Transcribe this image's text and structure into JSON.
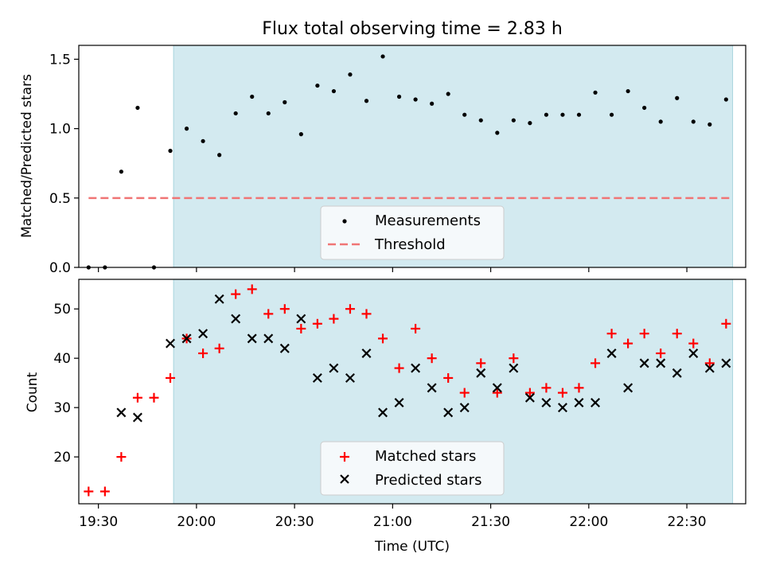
{
  "title": "Flux total observing time = 2.83 h",
  "colors": {
    "span": "#d3eaf0",
    "threshold": "#f07575",
    "matched": "#ff0000",
    "predicted": "#000000",
    "measurement": "#000000"
  },
  "chart_data": [
    {
      "type": "scatter",
      "ylabel": "Matched/Predicted stars",
      "ylim": [
        0,
        1.6
      ],
      "yticks": [
        "0.0",
        "0.5",
        "1.0",
        "1.5"
      ],
      "yticks_values": [
        0,
        0.5,
        1.0,
        1.5
      ],
      "xlim": [
        "19:24",
        "22:48"
      ],
      "shaded_span": [
        "19:53",
        "22:44"
      ],
      "legend": {
        "position": "bottom-center",
        "entries": [
          "Measurements",
          "Threshold"
        ]
      },
      "threshold": {
        "value": 0.5,
        "x_start": "19:27",
        "x_end": "22:43"
      },
      "series": [
        {
          "name": "Measurements",
          "points": [
            [
              "19:27",
              0.0
            ],
            [
              "19:32",
              0.0
            ],
            [
              "19:37",
              0.69
            ],
            [
              "19:42",
              1.15
            ],
            [
              "19:47",
              0.0
            ],
            [
              "19:52",
              0.84
            ],
            [
              "19:57",
              1.0
            ],
            [
              "20:02",
              0.91
            ],
            [
              "20:07",
              0.81
            ],
            [
              "20:12",
              1.11
            ],
            [
              "20:17",
              1.23
            ],
            [
              "20:22",
              1.11
            ],
            [
              "20:27",
              1.19
            ],
            [
              "20:32",
              0.96
            ],
            [
              "20:37",
              1.31
            ],
            [
              "20:42",
              1.27
            ],
            [
              "20:47",
              1.39
            ],
            [
              "20:52",
              1.2
            ],
            [
              "20:57",
              1.52
            ],
            [
              "21:02",
              1.23
            ],
            [
              "21:07",
              1.21
            ],
            [
              "21:12",
              1.18
            ],
            [
              "21:17",
              1.25
            ],
            [
              "21:22",
              1.1
            ],
            [
              "21:27",
              1.06
            ],
            [
              "21:32",
              0.97
            ],
            [
              "21:37",
              1.06
            ],
            [
              "21:42",
              1.04
            ],
            [
              "21:47",
              1.1
            ],
            [
              "21:52",
              1.1
            ],
            [
              "21:57",
              1.1
            ],
            [
              "22:02",
              1.26
            ],
            [
              "22:07",
              1.1
            ],
            [
              "22:12",
              1.27
            ],
            [
              "22:17",
              1.15
            ],
            [
              "22:22",
              1.05
            ],
            [
              "22:27",
              1.22
            ],
            [
              "22:32",
              1.05
            ],
            [
              "22:37",
              1.03
            ],
            [
              "22:42",
              1.21
            ]
          ]
        }
      ]
    },
    {
      "type": "scatter",
      "ylabel": "Count",
      "xlabel": "Time (UTC)",
      "ylim": [
        10.5,
        56
      ],
      "yticks": [
        "20",
        "30",
        "40",
        "50"
      ],
      "yticks_values": [
        20,
        30,
        40,
        50
      ],
      "xticks": [
        "19:30",
        "20:00",
        "20:30",
        "21:00",
        "21:30",
        "22:00",
        "22:30"
      ],
      "xlim": [
        "19:24",
        "22:48"
      ],
      "shaded_span": [
        "19:53",
        "22:44"
      ],
      "legend": {
        "position": "bottom-center",
        "entries": [
          "Matched stars",
          "Predicted stars"
        ]
      },
      "series": [
        {
          "name": "Matched stars",
          "marker": "+",
          "points": [
            [
              "19:27",
              13
            ],
            [
              "19:32",
              13
            ],
            [
              "19:37",
              20
            ],
            [
              "19:42",
              32
            ],
            [
              "19:47",
              32
            ],
            [
              "19:52",
              36
            ],
            [
              "19:57",
              44
            ],
            [
              "20:02",
              41
            ],
            [
              "20:07",
              42
            ],
            [
              "20:12",
              53
            ],
            [
              "20:17",
              54
            ],
            [
              "20:22",
              49
            ],
            [
              "20:27",
              50
            ],
            [
              "20:32",
              46
            ],
            [
              "20:37",
              47
            ],
            [
              "20:42",
              48
            ],
            [
              "20:47",
              50
            ],
            [
              "20:52",
              49
            ],
            [
              "20:57",
              44
            ],
            [
              "21:02",
              38
            ],
            [
              "21:07",
              46
            ],
            [
              "21:12",
              40
            ],
            [
              "21:17",
              36
            ],
            [
              "21:22",
              33
            ],
            [
              "21:27",
              39
            ],
            [
              "21:32",
              33
            ],
            [
              "21:37",
              40
            ],
            [
              "21:42",
              33
            ],
            [
              "21:47",
              34
            ],
            [
              "21:52",
              33
            ],
            [
              "21:57",
              34
            ],
            [
              "22:02",
              39
            ],
            [
              "22:07",
              45
            ],
            [
              "22:12",
              43
            ],
            [
              "22:17",
              45
            ],
            [
              "22:22",
              41
            ],
            [
              "22:27",
              45
            ],
            [
              "22:32",
              43
            ],
            [
              "22:37",
              39
            ],
            [
              "22:42",
              47
            ]
          ]
        },
        {
          "name": "Predicted stars",
          "marker": "x",
          "points": [
            [
              "19:37",
              29
            ],
            [
              "19:42",
              28
            ],
            [
              "19:52",
              43
            ],
            [
              "19:57",
              44
            ],
            [
              "20:02",
              45
            ],
            [
              "20:07",
              52
            ],
            [
              "20:12",
              48
            ],
            [
              "20:17",
              44
            ],
            [
              "20:22",
              44
            ],
            [
              "20:27",
              42
            ],
            [
              "20:32",
              48
            ],
            [
              "20:37",
              36
            ],
            [
              "20:42",
              38
            ],
            [
              "20:47",
              36
            ],
            [
              "20:52",
              41
            ],
            [
              "20:57",
              29
            ],
            [
              "21:02",
              31
            ],
            [
              "21:07",
              38
            ],
            [
              "21:12",
              34
            ],
            [
              "21:17",
              29
            ],
            [
              "21:22",
              30
            ],
            [
              "21:27",
              37
            ],
            [
              "21:32",
              34
            ],
            [
              "21:37",
              38
            ],
            [
              "21:42",
              32
            ],
            [
              "21:47",
              31
            ],
            [
              "21:52",
              30
            ],
            [
              "21:57",
              31
            ],
            [
              "22:02",
              31
            ],
            [
              "22:07",
              41
            ],
            [
              "22:12",
              34
            ],
            [
              "22:17",
              39
            ],
            [
              "22:22",
              39
            ],
            [
              "22:27",
              37
            ],
            [
              "22:32",
              41
            ],
            [
              "22:37",
              38
            ],
            [
              "22:42",
              39
            ]
          ]
        }
      ]
    }
  ]
}
